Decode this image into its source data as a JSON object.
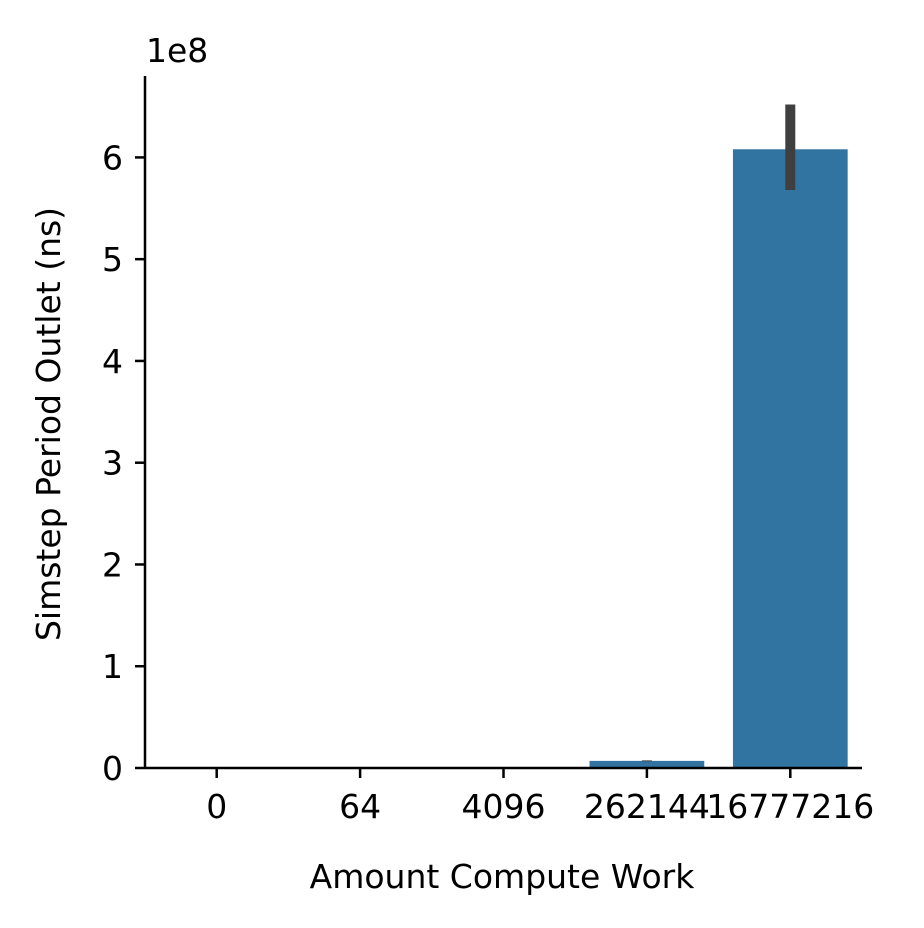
{
  "chart_data": {
    "type": "bar",
    "categories": [
      "0",
      "64",
      "4096",
      "262144",
      "16777216"
    ],
    "values": [
      500000,
      500000,
      800000,
      7000000,
      608000000
    ],
    "error_bars": [
      {
        "low": 500000,
        "high": 500000
      },
      {
        "low": 500000,
        "high": 500000
      },
      {
        "low": 800000,
        "high": 800000
      },
      {
        "low": 6500000,
        "high": 7500000
      },
      {
        "low": 568000000,
        "high": 652000000
      }
    ],
    "xlabel": "Amount Compute Work",
    "ylabel": "Simstep Period Outlet (ns)",
    "ylim": [
      0,
      680000000
    ],
    "yticks": [
      0,
      1,
      2,
      3,
      4,
      5,
      6
    ],
    "y_offset_label": "1e8",
    "y_scale_factor": 100000000,
    "bar_color": "#3274a1",
    "errorbar_color": "#3f3f3f",
    "grid": false
  }
}
